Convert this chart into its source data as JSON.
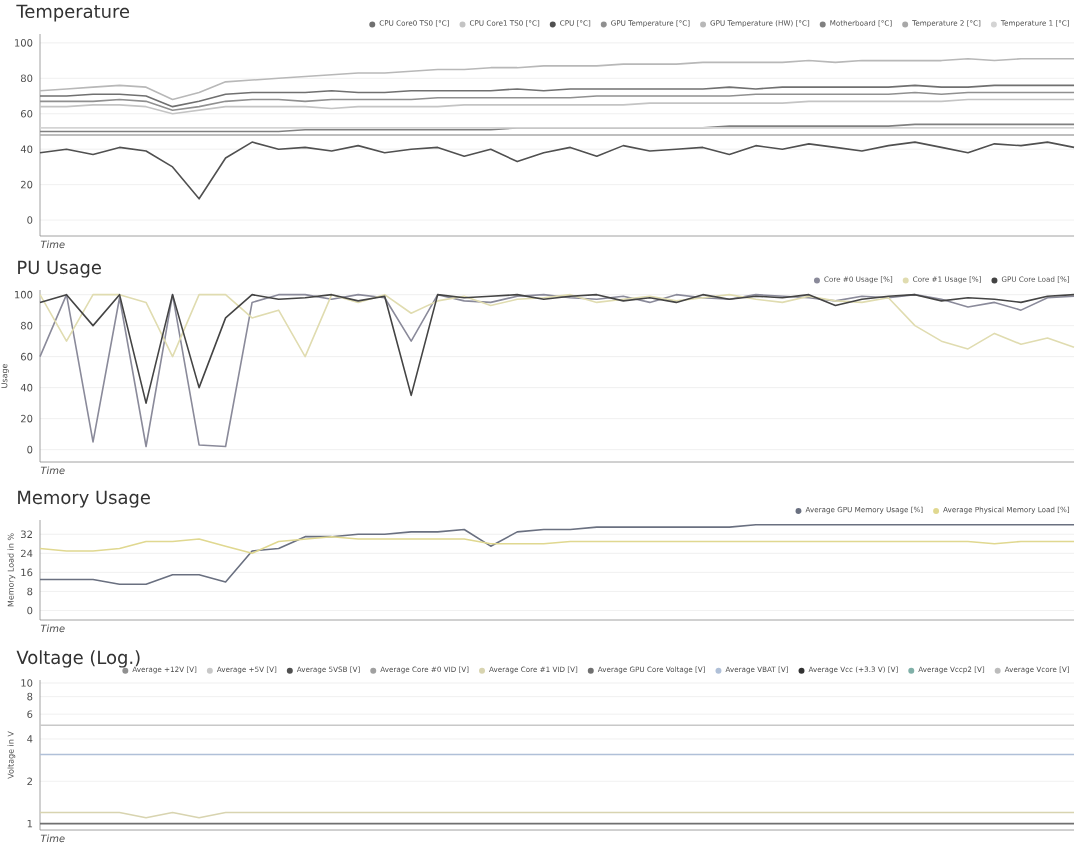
{
  "chart_data": [
    {
      "type": "line",
      "title": "Temperature",
      "xlabel": "Time",
      "categories": [
        null,
        null,
        null,
        null,
        null,
        null,
        null,
        null,
        null,
        null,
        null,
        null,
        null,
        null,
        null,
        null,
        null,
        null,
        null,
        null,
        null,
        null,
        null,
        null,
        null,
        null,
        null,
        null,
        null,
        null,
        null,
        null,
        null,
        null,
        null,
        null,
        null,
        null,
        null,
        null
      ],
      "ylim": [
        -9,
        105
      ],
      "yticks": [
        0,
        20,
        40,
        60,
        80,
        100
      ],
      "grid": "y",
      "legend": "top right",
      "tick_labels": "y",
      "marker": "none",
      "line_style": "solid",
      "series": [
        {
          "name": "CPU Core0 TS0 [°C]",
          "color": "#707070",
          "values": [
            70,
            70,
            71,
            71,
            70,
            64,
            67,
            71,
            72,
            72,
            72,
            73,
            72,
            72,
            73,
            73,
            73,
            73,
            74,
            73,
            74,
            74,
            74,
            74,
            74,
            74,
            75,
            74,
            75,
            75,
            75,
            75,
            75,
            76,
            75,
            75,
            76,
            76,
            76,
            76
          ]
        },
        {
          "name": "CPU Core1 TS0 [°C]",
          "color": "#c4c4c4",
          "values": [
            64,
            64,
            65,
            65,
            64,
            60,
            62,
            64,
            64,
            64,
            64,
            63,
            64,
            64,
            64,
            64,
            65,
            65,
            65,
            65,
            65,
            65,
            65,
            66,
            66,
            66,
            66,
            66,
            66,
            67,
            67,
            67,
            67,
            67,
            67,
            68,
            68,
            68,
            68,
            68
          ]
        },
        {
          "name": "CPU [°C]",
          "color": "#505050",
          "values": [
            38,
            40,
            37,
            41,
            39,
            30,
            12,
            35,
            44,
            40,
            41,
            39,
            42,
            38,
            40,
            41,
            36,
            40,
            33,
            38,
            41,
            36,
            42,
            39,
            40,
            41,
            37,
            42,
            40,
            43,
            41,
            39,
            42,
            44,
            41,
            38,
            43,
            42,
            44,
            41
          ]
        },
        {
          "name": "GPU Temperature [°C]",
          "color": "#909090",
          "values": [
            67,
            67,
            67,
            68,
            67,
            62,
            64,
            67,
            68,
            68,
            67,
            68,
            68,
            68,
            68,
            69,
            69,
            69,
            69,
            69,
            69,
            70,
            70,
            70,
            70,
            70,
            70,
            71,
            71,
            71,
            71,
            71,
            71,
            72,
            71,
            72,
            72,
            72,
            72,
            72
          ]
        },
        {
          "name": "GPU Temperature (HW) [°C]",
          "color": "#b8b8b8",
          "values": [
            73,
            74,
            75,
            76,
            75,
            68,
            72,
            78,
            79,
            80,
            81,
            82,
            83,
            83,
            84,
            85,
            85,
            86,
            86,
            87,
            87,
            87,
            88,
            88,
            88,
            89,
            89,
            89,
            89,
            90,
            89,
            90,
            90,
            90,
            90,
            91,
            90,
            91,
            91,
            91
          ]
        },
        {
          "name": "Motherboard [°C]",
          "color": "#808080",
          "values": [
            50,
            50,
            50,
            50,
            50,
            50,
            50,
            50,
            50,
            50,
            51,
            51,
            51,
            51,
            51,
            51,
            51,
            51,
            52,
            52,
            52,
            52,
            52,
            52,
            52,
            52,
            53,
            53,
            53,
            53,
            53,
            53,
            53,
            54,
            54,
            54,
            54,
            54,
            54,
            54
          ]
        },
        {
          "name": "Temperature 2 [°C]",
          "color": "#a8a8a8",
          "values": [
            48,
            48,
            48,
            48,
            48,
            48,
            48,
            48,
            48,
            48,
            48,
            48,
            48,
            48,
            48,
            48,
            48,
            48,
            48,
            48,
            48,
            48,
            48,
            48,
            48,
            48,
            48,
            48,
            48,
            48,
            48,
            48,
            48,
            48,
            48,
            48,
            48,
            48,
            48,
            48
          ]
        },
        {
          "name": "Temperature 1 [°C]",
          "color": "#d4d4d4",
          "values": [
            52,
            52,
            52,
            52,
            52,
            52,
            52,
            52,
            52,
            52,
            52,
            52,
            52,
            52,
            52,
            52,
            52,
            52,
            52,
            52,
            52,
            52,
            52,
            52,
            52,
            52,
            52,
            52,
            52,
            52,
            52,
            52,
            52,
            52,
            52,
            52,
            52,
            52,
            52,
            52
          ]
        }
      ]
    },
    {
      "type": "line",
      "title": "PU Usage",
      "xlabel": "Time",
      "ylabel": "Usage",
      "categories": [
        null,
        null,
        null,
        null,
        null,
        null,
        null,
        null,
        null,
        null,
        null,
        null,
        null,
        null,
        null,
        null,
        null,
        null,
        null,
        null,
        null,
        null,
        null,
        null,
        null,
        null,
        null,
        null,
        null,
        null,
        null,
        null,
        null,
        null,
        null,
        null,
        null,
        null,
        null,
        null
      ],
      "ylim": [
        -8,
        103
      ],
      "yticks": [
        0,
        20,
        40,
        60,
        80,
        100
      ],
      "grid": "y",
      "legend": "top right",
      "tick_labels": "y",
      "marker": "none",
      "line_style": "solid",
      "series": [
        {
          "name": "Core #0 Usage [%]",
          "color": "#8a8a9a",
          "values": [
            60,
            100,
            5,
            98,
            2,
            100,
            3,
            2,
            95,
            100,
            100,
            97,
            100,
            98,
            70,
            100,
            96,
            95,
            99,
            100,
            98,
            97,
            99,
            95,
            100,
            98,
            97,
            100,
            99,
            98,
            96,
            99,
            98,
            100,
            97,
            92,
            95,
            90,
            98,
            99
          ]
        },
        {
          "name": "Core #1 Usage [%]",
          "color": "#e0dcb0",
          "values": [
            100,
            70,
            100,
            100,
            95,
            60,
            100,
            100,
            85,
            90,
            60,
            100,
            95,
            100,
            88,
            96,
            99,
            93,
            97,
            98,
            100,
            95,
            97,
            99,
            96,
            98,
            100,
            97,
            95,
            99,
            96,
            95,
            98,
            80,
            70,
            65,
            75,
            68,
            72,
            66
          ]
        },
        {
          "name": "GPU Core Load [%]",
          "color": "#444444",
          "values": [
            95,
            100,
            80,
            100,
            30,
            100,
            40,
            85,
            100,
            97,
            98,
            100,
            96,
            99,
            35,
            100,
            98,
            99,
            100,
            97,
            99,
            100,
            96,
            98,
            95,
            100,
            97,
            99,
            98,
            100,
            93,
            97,
            99,
            100,
            96,
            98,
            97,
            95,
            99,
            100
          ]
        }
      ]
    },
    {
      "type": "line",
      "title": "Memory Usage",
      "xlabel": "Time",
      "ylabel": "Memory Load in %",
      "categories": [
        null,
        null,
        null,
        null,
        null,
        null,
        null,
        null,
        null,
        null,
        null,
        null,
        null,
        null,
        null,
        null,
        null,
        null,
        null,
        null,
        null,
        null,
        null,
        null,
        null,
        null,
        null,
        null,
        null,
        null,
        null,
        null,
        null,
        null,
        null,
        null,
        null,
        null,
        null,
        null
      ],
      "ylim": [
        -4,
        38
      ],
      "yticks": [
        0,
        8,
        16,
        24,
        32
      ],
      "grid": "y",
      "legend": "top right",
      "tick_labels": "y",
      "marker": "none",
      "line_style": "solid",
      "series": [
        {
          "name": "Average GPU Memory Usage [%]",
          "color": "#6a7080",
          "values": [
            13,
            13,
            13,
            11,
            11,
            15,
            15,
            12,
            25,
            26,
            31,
            31,
            32,
            32,
            33,
            33,
            34,
            27,
            33,
            34,
            34,
            35,
            35,
            35,
            35,
            35,
            35,
            36,
            36,
            36,
            36,
            36,
            36,
            36,
            36,
            36,
            36,
            36,
            36,
            36
          ]
        },
        {
          "name": "Average Physical Memory Load [%]",
          "color": "#e0d890",
          "values": [
            26,
            25,
            25,
            26,
            29,
            29,
            30,
            27,
            24,
            29,
            30,
            31,
            30,
            30,
            30,
            30,
            30,
            28,
            28,
            28,
            29,
            29,
            29,
            29,
            29,
            29,
            29,
            29,
            29,
            29,
            29,
            29,
            29,
            29,
            29,
            29,
            28,
            29,
            29,
            29
          ]
        }
      ]
    },
    {
      "type": "line",
      "title": "Voltage (Log.)",
      "xlabel": "Time",
      "ylabel": "Voltage in V",
      "log": "y",
      "categories": [
        null,
        null,
        null,
        null,
        null,
        null,
        null,
        null,
        null,
        null,
        null,
        null,
        null,
        null,
        null,
        null,
        null,
        null,
        null,
        null,
        null,
        null,
        null,
        null,
        null,
        null,
        null,
        null,
        null,
        null,
        null,
        null,
        null,
        null,
        null,
        null,
        null,
        null,
        null,
        null
      ],
      "ylim": [
        0.9,
        10.5
      ],
      "yticks": [
        1,
        2,
        4,
        6,
        8,
        10
      ],
      "grid": "y",
      "legend": "top right",
      "tick_labels": "y",
      "marker": "none",
      "line_style": "solid",
      "series": [
        {
          "name": "Average +12V [V]",
          "color": "#909090",
          "values": [
            null,
            null,
            null,
            null,
            null,
            null,
            null,
            null,
            null,
            null,
            null,
            null,
            null,
            null,
            null,
            null,
            null,
            null,
            null,
            null,
            null,
            null,
            null,
            null,
            null,
            null,
            null,
            null,
            null,
            null,
            null,
            null,
            null,
            null,
            null,
            null,
            null,
            null,
            null,
            null
          ]
        },
        {
          "name": "Average +5V [V]",
          "color": "#c8c8c8",
          "values": [
            5,
            5,
            5,
            5,
            5,
            5,
            5,
            5,
            5,
            5,
            5,
            5,
            5,
            5,
            5,
            5,
            5,
            5,
            5,
            5,
            5,
            5,
            5,
            5,
            5,
            5,
            5,
            5,
            5,
            5,
            5,
            5,
            5,
            5,
            5,
            5,
            5,
            5,
            5,
            5
          ]
        },
        {
          "name": "Average 5VSB [V]",
          "color": "#505050",
          "values": [
            null,
            null,
            null,
            null,
            null,
            null,
            null,
            null,
            null,
            null,
            null,
            null,
            null,
            null,
            null,
            null,
            null,
            null,
            null,
            null,
            null,
            null,
            null,
            null,
            null,
            null,
            null,
            null,
            null,
            null,
            null,
            null,
            null,
            null,
            null,
            null,
            null,
            null,
            null,
            null
          ]
        },
        {
          "name": "Average Core #0 VID [V]",
          "color": "#a0a0a0",
          "values": [
            null,
            null,
            null,
            null,
            null,
            null,
            null,
            null,
            null,
            null,
            null,
            null,
            null,
            null,
            null,
            null,
            null,
            null,
            null,
            null,
            null,
            null,
            null,
            null,
            null,
            null,
            null,
            null,
            null,
            null,
            null,
            null,
            null,
            null,
            null,
            null,
            null,
            null,
            null,
            null
          ]
        },
        {
          "name": "Average Core #1 VID [V]",
          "color": "#d8d4b0",
          "values": [
            1.2,
            1.2,
            1.2,
            1.2,
            1.1,
            1.2,
            1.1,
            1.2,
            1.2,
            1.2,
            1.2,
            1.2,
            1.2,
            1.2,
            1.2,
            1.2,
            1.2,
            1.2,
            1.2,
            1.2,
            1.2,
            1.2,
            1.2,
            1.2,
            1.2,
            1.2,
            1.2,
            1.2,
            1.2,
            1.2,
            1.2,
            1.2,
            1.2,
            1.2,
            1.2,
            1.2,
            1.2,
            1.2,
            1.2,
            1.2
          ]
        },
        {
          "name": "Average GPU Core Voltage [V]",
          "color": "#707070",
          "values": [
            1,
            1,
            1,
            1,
            1,
            1,
            1,
            1,
            1,
            1,
            1,
            1,
            1,
            1,
            1,
            1,
            1,
            1,
            1,
            1,
            1,
            1,
            1,
            1,
            1,
            1,
            1,
            1,
            1,
            1,
            1,
            1,
            1,
            1,
            1,
            1,
            1,
            1,
            1,
            1
          ]
        },
        {
          "name": "Average VBAT [V]",
          "color": "#b0c0d8",
          "values": [
            3.1,
            3.1,
            3.1,
            3.1,
            3.1,
            3.1,
            3.1,
            3.1,
            3.1,
            3.1,
            3.1,
            3.1,
            3.1,
            3.1,
            3.1,
            3.1,
            3.1,
            3.1,
            3.1,
            3.1,
            3.1,
            3.1,
            3.1,
            3.1,
            3.1,
            3.1,
            3.1,
            3.1,
            3.1,
            3.1,
            3.1,
            3.1,
            3.1,
            3.1,
            3.1,
            3.1,
            3.1,
            3.1,
            3.1,
            3.1
          ]
        },
        {
          "name": "Average Vcc (+3.3 V) [V]",
          "color": "#333333",
          "values": [
            null,
            null,
            null,
            null,
            null,
            null,
            null,
            null,
            null,
            null,
            null,
            null,
            null,
            null,
            null,
            null,
            null,
            null,
            null,
            null,
            null,
            null,
            null,
            null,
            null,
            null,
            null,
            null,
            null,
            null,
            null,
            null,
            null,
            null,
            null,
            null,
            null,
            null,
            null,
            null
          ]
        },
        {
          "name": "Average Vccp2 [V]",
          "color": "#80b0a8",
          "values": [
            null,
            null,
            null,
            null,
            null,
            null,
            null,
            null,
            null,
            null,
            null,
            null,
            null,
            null,
            null,
            null,
            null,
            null,
            null,
            null,
            null,
            null,
            null,
            null,
            null,
            null,
            null,
            null,
            null,
            null,
            null,
            null,
            null,
            null,
            null,
            null,
            null,
            null,
            null,
            null
          ]
        },
        {
          "name": "Average Vcore [V]",
          "color": "#bcbcbc",
          "values": [
            null,
            null,
            null,
            null,
            null,
            null,
            null,
            null,
            null,
            null,
            null,
            null,
            null,
            null,
            null,
            null,
            null,
            null,
            null,
            null,
            null,
            null,
            null,
            null,
            null,
            null,
            null,
            null,
            null,
            null,
            null,
            null,
            null,
            null,
            null,
            null,
            null,
            null,
            null,
            null
          ]
        }
      ]
    }
  ]
}
